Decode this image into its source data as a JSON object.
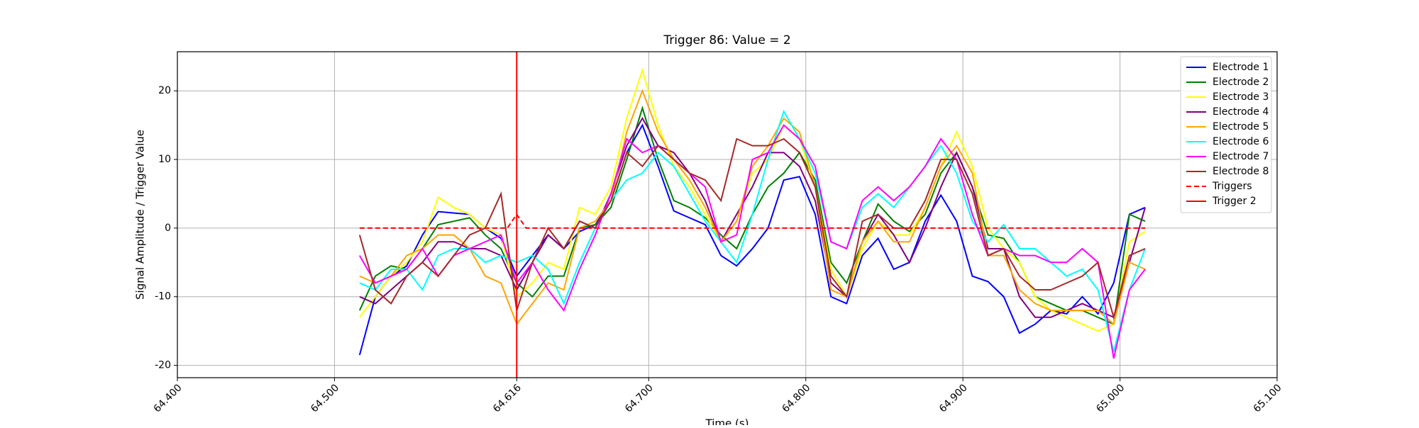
{
  "chart_data": {
    "type": "line",
    "title": "Trigger 86: Value = 2",
    "x_label": "Time (s)",
    "y_label": "Signal Amplitude / Trigger Value",
    "xlim": [
      64.4,
      65.1
    ],
    "ylim": [
      -21.8,
      25.7
    ],
    "xticks": [
      {
        "value": 64.4,
        "label": "64.400"
      },
      {
        "value": 64.5,
        "label": "64.500"
      },
      {
        "value": 64.616,
        "label": "64.616"
      },
      {
        "value": 64.7,
        "label": "64.700"
      },
      {
        "value": 64.8,
        "label": "64.800"
      },
      {
        "value": 64.9,
        "label": "64.900"
      },
      {
        "value": 65.0,
        "label": "65.000"
      },
      {
        "value": 65.1,
        "label": "65.100"
      }
    ],
    "yticks": [
      -20,
      -10,
      0,
      10,
      20
    ],
    "grid": true,
    "legend": "upper right",
    "x": [
      64.516,
      64.526,
      64.536,
      64.546,
      64.556,
      64.566,
      64.576,
      64.586,
      64.596,
      64.606,
      64.616,
      64.626,
      64.636,
      64.646,
      64.656,
      64.666,
      64.676,
      64.686,
      64.696,
      64.706,
      64.716,
      64.726,
      64.736,
      64.746,
      64.756,
      64.766,
      64.776,
      64.786,
      64.796,
      64.806,
      64.816,
      64.826,
      64.836,
      64.846,
      64.856,
      64.866,
      64.876,
      64.886,
      64.896,
      64.906,
      64.916,
      64.926,
      64.936,
      64.946,
      64.956,
      64.966,
      64.976,
      64.986,
      64.996,
      65.006,
      65.016
    ],
    "series": [
      {
        "name": "Electrode 1",
        "color": "#0000ff",
        "values": [
          -18.5,
          -10,
          -7,
          -5.5,
          -1,
          2.4,
          2.2,
          2,
          0,
          -1.5,
          -7,
          -4,
          -1,
          -3,
          -0.5,
          0.5,
          4,
          11,
          15,
          9,
          2.5,
          1.5,
          0.5,
          -4,
          -5.5,
          -3,
          0,
          7,
          7.5,
          2,
          -10,
          -11,
          -4,
          -1.5,
          -6,
          -5,
          1,
          4.8,
          1,
          -7,
          -7.8,
          -10,
          -15.3,
          -14,
          -12,
          -12.5,
          -10,
          -12.5,
          -8,
          2,
          3
        ]
      },
      {
        "name": "Electrode 2",
        "color": "#008000",
        "values": [
          -12,
          -7,
          -5.5,
          -6,
          -3,
          0.5,
          1,
          1.5,
          -1,
          -3,
          -8,
          -10,
          -7,
          -7,
          0,
          0.5,
          3,
          10,
          17.5,
          10,
          4,
          3,
          1.5,
          -1,
          -3,
          2,
          6,
          8,
          11,
          7,
          -5,
          -8,
          -2,
          3.5,
          1,
          -0.5,
          2,
          8,
          11,
          6,
          -1,
          -1.5,
          -5,
          -10,
          -11,
          -12,
          -12,
          -13,
          -14,
          2,
          1
        ]
      },
      {
        "name": "Electrode 3",
        "color": "#ffff00",
        "values": [
          -13,
          -10,
          -7,
          -5,
          -2,
          4.5,
          3,
          2,
          0,
          -1,
          -10,
          -8,
          -5,
          -6,
          3,
          2,
          6,
          16,
          23,
          15,
          9,
          6,
          2,
          -2,
          1,
          8,
          10,
          15,
          13,
          6,
          -6,
          -10,
          -3,
          1,
          -1,
          -1,
          3,
          9,
          14,
          9,
          0,
          -3,
          -5,
          -10,
          -12,
          -13,
          -14,
          -15,
          -14,
          -2,
          -0.5
        ]
      },
      {
        "name": "Electrode 4",
        "color": "#800080",
        "values": [
          -10,
          -11,
          -9,
          -7,
          -5,
          -2,
          -2,
          -3,
          -3,
          -4,
          -9,
          -5,
          -1,
          -3,
          1,
          0,
          5,
          12,
          16,
          12,
          11,
          8,
          4,
          -2,
          2,
          6,
          11,
          11,
          9,
          4,
          -8,
          -10,
          -2,
          2,
          -1,
          -5,
          0,
          6,
          11,
          6,
          -3,
          -3,
          -10,
          -13,
          -13,
          -12,
          -11,
          -12,
          -13,
          -5,
          3
        ]
      },
      {
        "name": "Electrode 5",
        "color": "#ffa500",
        "values": [
          -7,
          -8,
          -7,
          -4,
          -3,
          -1,
          -1,
          -3,
          -7,
          -8,
          -14,
          -11,
          -8,
          -9,
          0,
          1,
          4,
          14,
          20,
          14,
          10,
          7,
          3,
          -2,
          1,
          9,
          12,
          16,
          14,
          6,
          -9,
          -10,
          -2,
          1,
          -2,
          -2,
          3,
          9,
          12,
          8,
          -4,
          -4,
          -9,
          -11,
          -12,
          -12,
          -12,
          -12,
          -14,
          -5,
          -6
        ]
      },
      {
        "name": "Electrode 6",
        "color": "#00ffff",
        "values": [
          -8,
          -9,
          -6,
          -6,
          -9,
          -4,
          -3,
          -3,
          -5,
          -4,
          -5,
          -4,
          -6,
          -11,
          -5,
          0,
          4,
          7,
          8,
          11,
          9,
          5,
          1,
          -2,
          -5,
          2,
          10,
          17,
          13,
          8,
          -2,
          -3,
          3,
          5,
          3,
          6,
          9,
          12,
          8,
          1,
          -2,
          0.5,
          -3,
          -3,
          -5,
          -7,
          -6,
          -9,
          -18,
          -9,
          -3
        ]
      },
      {
        "name": "Electrode 7",
        "color": "#ff00ff",
        "values": [
          -4,
          -8,
          -7,
          -6,
          -3,
          -7,
          -4,
          -3,
          -2,
          -1,
          -8,
          -5,
          -9,
          -12,
          -6,
          -1,
          5,
          13,
          11,
          12,
          10,
          8,
          6,
          -2,
          -1,
          10,
          11,
          15,
          13,
          9,
          -2,
          -3,
          4,
          6,
          4,
          6,
          9,
          13,
          10,
          2,
          -4,
          -3,
          -4,
          -4,
          -5,
          -5,
          -3,
          -5,
          -19,
          -9,
          -6
        ]
      },
      {
        "name": "Electrode 8",
        "color": "#a52a2a",
        "values": [
          -1,
          -9,
          -11,
          -7,
          -5,
          -7,
          -4,
          -1,
          0,
          5,
          -12,
          -5,
          0,
          -3,
          1,
          0,
          4,
          11,
          9,
          12,
          10,
          8,
          7,
          4,
          13,
          12,
          12,
          13,
          11,
          6,
          -7,
          -10,
          1,
          2,
          0,
          0,
          4,
          10,
          10,
          5,
          -4,
          -3,
          -7,
          -9,
          -9,
          -8,
          -7,
          -5,
          -13,
          -4,
          -3
        ]
      },
      {
        "name": "Triggers",
        "color": "#ff0000",
        "dashed": true,
        "x": [
          64.516,
          64.61,
          64.616,
          64.622,
          65.016
        ],
        "values": [
          0,
          0,
          2,
          0,
          0
        ]
      }
    ],
    "vlines": [
      {
        "name": "Trigger 2",
        "color": "#ff0000",
        "x": 64.616
      }
    ]
  }
}
